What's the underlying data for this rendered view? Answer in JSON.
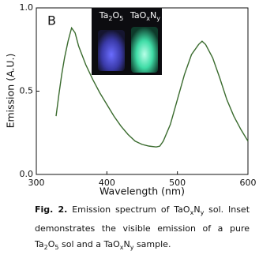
{
  "chart_data": {
    "type": "line",
    "panel_label": "B",
    "xlabel": "Wavelength (nm)",
    "ylabel": "Emission (A.U.)",
    "x": [
      328,
      332,
      336,
      340,
      345,
      350,
      355,
      360,
      370,
      380,
      390,
      400,
      410,
      420,
      430,
      440,
      450,
      460,
      470,
      475,
      480,
      490,
      500,
      510,
      520,
      530,
      535,
      540,
      550,
      560,
      570,
      580,
      590,
      600
    ],
    "values": [
      0.35,
      0.48,
      0.6,
      0.7,
      0.8,
      0.88,
      0.85,
      0.77,
      0.66,
      0.57,
      0.49,
      0.42,
      0.35,
      0.29,
      0.24,
      0.2,
      0.18,
      0.17,
      0.165,
      0.17,
      0.2,
      0.3,
      0.45,
      0.6,
      0.72,
      0.78,
      0.8,
      0.78,
      0.7,
      0.58,
      0.45,
      0.35,
      0.27,
      0.2
    ],
    "color": "#3a6b2e",
    "xlim": [
      300,
      600
    ],
    "xticks": [
      300,
      400,
      500,
      600
    ],
    "ylim": [
      0,
      1
    ],
    "yticks": [
      {
        "value": 0,
        "label": "0.0"
      },
      0.5,
      {
        "value": 1,
        "label": "1.0"
      }
    ],
    "grid": false,
    "inset_labels": [
      [
        "Ta",
        "2",
        "O",
        "5"
      ],
      [
        "TaO",
        "x",
        "N",
        "y"
      ]
    ]
  },
  "caption": {
    "label": "Fig. 2.",
    "parts": [
      "Emission spectrum of TaO",
      "x",
      "N",
      "y",
      " sol. Inset demonstrates the visible emission of a pure Ta",
      "2",
      "O",
      "5",
      " sol and a TaO",
      "x",
      "N",
      "y",
      " sample."
    ]
  }
}
